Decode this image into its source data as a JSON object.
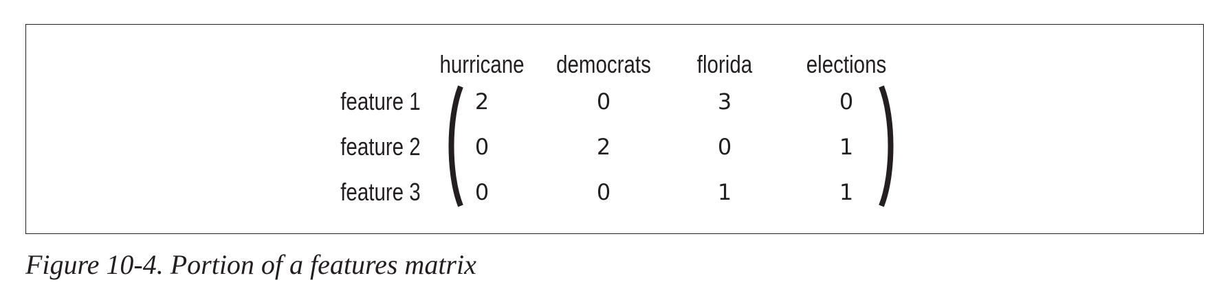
{
  "matrix": {
    "columns": [
      "hurricane",
      "democrats",
      "florida",
      "elections"
    ],
    "rows": [
      {
        "label": "feature 1",
        "values": [
          "2",
          "0",
          "3",
          "0"
        ]
      },
      {
        "label": "feature 2",
        "values": [
          "0",
          "2",
          "0",
          "1"
        ]
      },
      {
        "label": "feature 3",
        "values": [
          "0",
          "0",
          "1",
          "1"
        ]
      }
    ]
  },
  "caption": "Figure 10-4. Portion of a features matrix"
}
